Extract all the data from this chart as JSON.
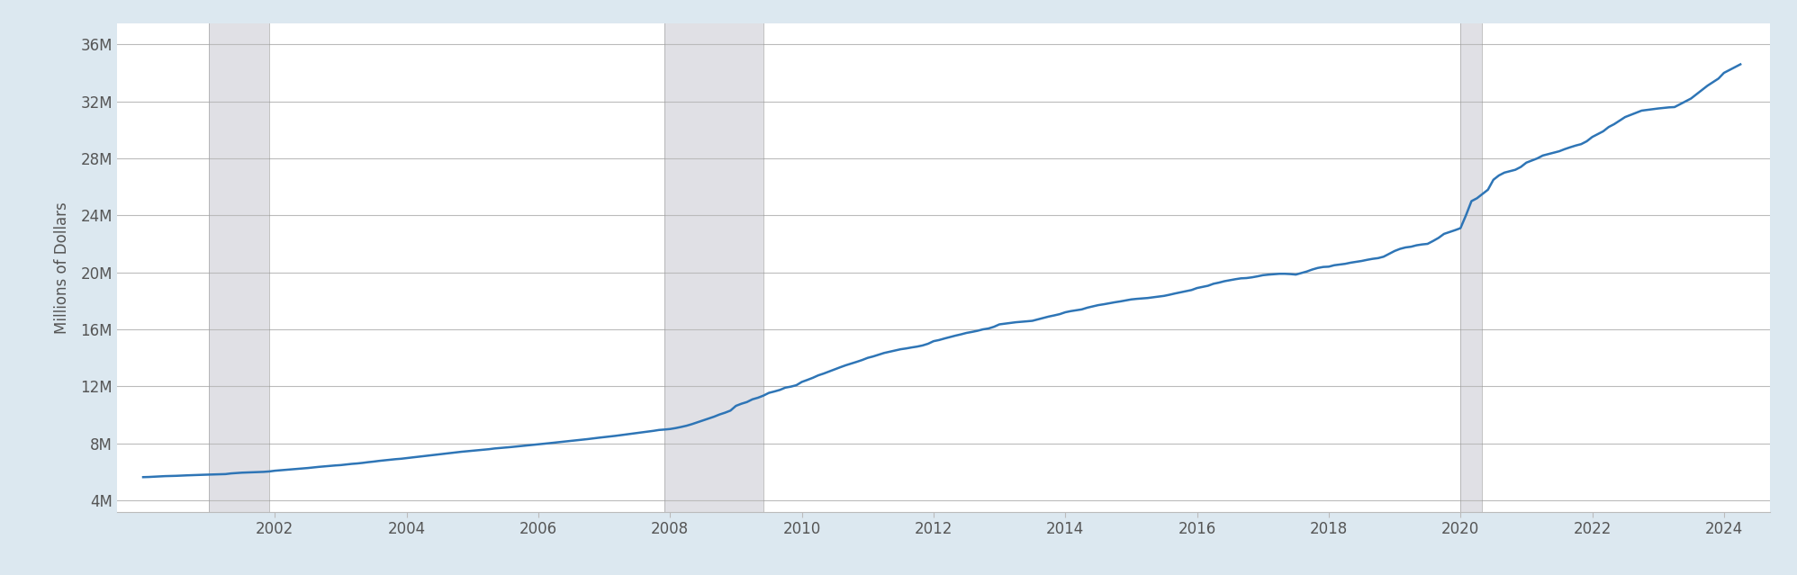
{
  "ylabel": "Millions of Dollars",
  "background_color": "#dce8f0",
  "plot_background_color": "#ffffff",
  "line_color": "#2e75b6",
  "line_width": 1.8,
  "grid_color": "#bbbbbb",
  "yticks": [
    4000000,
    8000000,
    12000000,
    16000000,
    20000000,
    24000000,
    28000000,
    32000000,
    36000000
  ],
  "ytick_labels": [
    "4M",
    "8M",
    "12M",
    "16M",
    "20M",
    "24M",
    "28M",
    "32M",
    "36M"
  ],
  "xticks": [
    2002,
    2004,
    2006,
    2008,
    2010,
    2012,
    2014,
    2016,
    2018,
    2020,
    2022,
    2024
  ],
  "ylim": [
    3200000,
    37500000
  ],
  "xlim": [
    1999.6,
    2024.7
  ],
  "recession_bands": [
    {
      "start": 2001.0,
      "end": 2001.92
    },
    {
      "start": 2007.92,
      "end": 2009.42
    },
    {
      "start": 2020.0,
      "end": 2020.33
    }
  ],
  "recession_color": "#d0d0d8",
  "recession_line_color": "#999999",
  "recession_alpha": 0.65,
  "data_x": [
    2000.0,
    2000.083,
    2000.167,
    2000.25,
    2000.333,
    2000.417,
    2000.5,
    2000.583,
    2000.667,
    2000.75,
    2000.833,
    2000.917,
    2001.0,
    2001.083,
    2001.167,
    2001.25,
    2001.333,
    2001.417,
    2001.5,
    2001.583,
    2001.667,
    2001.75,
    2001.833,
    2001.917,
    2002.0,
    2002.083,
    2002.167,
    2002.25,
    2002.333,
    2002.417,
    2002.5,
    2002.583,
    2002.667,
    2002.75,
    2002.833,
    2002.917,
    2003.0,
    2003.083,
    2003.167,
    2003.25,
    2003.333,
    2003.417,
    2003.5,
    2003.583,
    2003.667,
    2003.75,
    2003.833,
    2003.917,
    2004.0,
    2004.083,
    2004.167,
    2004.25,
    2004.333,
    2004.417,
    2004.5,
    2004.583,
    2004.667,
    2004.75,
    2004.833,
    2004.917,
    2005.0,
    2005.083,
    2005.167,
    2005.25,
    2005.333,
    2005.417,
    2005.5,
    2005.583,
    2005.667,
    2005.75,
    2005.833,
    2005.917,
    2006.0,
    2006.083,
    2006.167,
    2006.25,
    2006.333,
    2006.417,
    2006.5,
    2006.583,
    2006.667,
    2006.75,
    2006.833,
    2006.917,
    2007.0,
    2007.083,
    2007.167,
    2007.25,
    2007.333,
    2007.417,
    2007.5,
    2007.583,
    2007.667,
    2007.75,
    2007.833,
    2007.917,
    2008.0,
    2008.083,
    2008.167,
    2008.25,
    2008.333,
    2008.417,
    2008.5,
    2008.583,
    2008.667,
    2008.75,
    2008.833,
    2008.917,
    2009.0,
    2009.083,
    2009.167,
    2009.25,
    2009.333,
    2009.417,
    2009.5,
    2009.583,
    2009.667,
    2009.75,
    2009.833,
    2009.917,
    2010.0,
    2010.083,
    2010.167,
    2010.25,
    2010.333,
    2010.417,
    2010.5,
    2010.583,
    2010.667,
    2010.75,
    2010.833,
    2010.917,
    2011.0,
    2011.083,
    2011.167,
    2011.25,
    2011.333,
    2011.417,
    2011.5,
    2011.583,
    2011.667,
    2011.75,
    2011.833,
    2011.917,
    2012.0,
    2012.083,
    2012.167,
    2012.25,
    2012.333,
    2012.417,
    2012.5,
    2012.583,
    2012.667,
    2012.75,
    2012.833,
    2012.917,
    2013.0,
    2013.083,
    2013.167,
    2013.25,
    2013.333,
    2013.417,
    2013.5,
    2013.583,
    2013.667,
    2013.75,
    2013.833,
    2013.917,
    2014.0,
    2014.083,
    2014.167,
    2014.25,
    2014.333,
    2014.417,
    2014.5,
    2014.583,
    2014.667,
    2014.75,
    2014.833,
    2014.917,
    2015.0,
    2015.083,
    2015.167,
    2015.25,
    2015.333,
    2015.417,
    2015.5,
    2015.583,
    2015.667,
    2015.75,
    2015.833,
    2015.917,
    2016.0,
    2016.083,
    2016.167,
    2016.25,
    2016.333,
    2016.417,
    2016.5,
    2016.583,
    2016.667,
    2016.75,
    2016.833,
    2016.917,
    2017.0,
    2017.083,
    2017.167,
    2017.25,
    2017.333,
    2017.417,
    2017.5,
    2017.583,
    2017.667,
    2017.75,
    2017.833,
    2017.917,
    2018.0,
    2018.083,
    2018.167,
    2018.25,
    2018.333,
    2018.417,
    2018.5,
    2018.583,
    2018.667,
    2018.75,
    2018.833,
    2018.917,
    2019.0,
    2019.083,
    2019.167,
    2019.25,
    2019.333,
    2019.417,
    2019.5,
    2019.583,
    2019.667,
    2019.75,
    2019.833,
    2019.917,
    2020.0,
    2020.083,
    2020.167,
    2020.25,
    2020.333,
    2020.417,
    2020.5,
    2020.583,
    2020.667,
    2020.75,
    2020.833,
    2020.917,
    2021.0,
    2021.083,
    2021.167,
    2021.25,
    2021.333,
    2021.417,
    2021.5,
    2021.583,
    2021.667,
    2021.75,
    2021.833,
    2021.917,
    2022.0,
    2022.083,
    2022.167,
    2022.25,
    2022.333,
    2022.417,
    2022.5,
    2022.583,
    2022.667,
    2022.75,
    2022.833,
    2022.917,
    2023.0,
    2023.083,
    2023.167,
    2023.25,
    2023.333,
    2023.417,
    2023.5,
    2023.583,
    2023.667,
    2023.75,
    2023.833,
    2023.917,
    2024.0,
    2024.083,
    2024.167,
    2024.25
  ],
  "data_y": [
    5629000,
    5640000,
    5660000,
    5685000,
    5700000,
    5710000,
    5721000,
    5740000,
    5755000,
    5770000,
    5785000,
    5796000,
    5807000,
    5820000,
    5832000,
    5843000,
    5890000,
    5920000,
    5943000,
    5958000,
    5972000,
    5988000,
    6000000,
    6030000,
    6079000,
    6110000,
    6145000,
    6176000,
    6210000,
    6240000,
    6269000,
    6310000,
    6350000,
    6384000,
    6420000,
    6450000,
    6475000,
    6520000,
    6560000,
    6589000,
    6630000,
    6680000,
    6721000,
    6770000,
    6810000,
    6853000,
    6890000,
    6920000,
    6968000,
    7010000,
    7055000,
    7099000,
    7145000,
    7190000,
    7230000,
    7280000,
    7325000,
    7367000,
    7410000,
    7445000,
    7480000,
    7520000,
    7555000,
    7590000,
    7640000,
    7672000,
    7700000,
    7740000,
    7780000,
    7820000,
    7860000,
    7895000,
    7933000,
    7975000,
    8012000,
    8050000,
    8095000,
    8135000,
    8175000,
    8215000,
    8258000,
    8300000,
    8350000,
    8395000,
    8438000,
    8480000,
    8525000,
    8575000,
    8620000,
    8670000,
    8720000,
    8780000,
    8830000,
    8880000,
    8940000,
    8970000,
    9007000,
    9070000,
    9150000,
    9237000,
    9350000,
    9480000,
    9602000,
    9730000,
    9870000,
    10024000,
    10150000,
    10300000,
    10632000,
    10780000,
    10900000,
    11090000,
    11200000,
    11350000,
    11542000,
    11640000,
    11750000,
    11910000,
    11980000,
    12080000,
    12311000,
    12450000,
    12600000,
    12773000,
    12900000,
    13050000,
    13200000,
    13340000,
    13480000,
    13600000,
    13720000,
    13850000,
    14000000,
    14100000,
    14220000,
    14344000,
    14430000,
    14520000,
    14604000,
    14660000,
    14730000,
    14790000,
    14870000,
    14990000,
    15170000,
    15250000,
    15360000,
    15460000,
    15560000,
    15650000,
    15750000,
    15820000,
    15900000,
    16000000,
    16060000,
    16180000,
    16350000,
    16400000,
    16450000,
    16500000,
    16530000,
    16565000,
    16600000,
    16700000,
    16800000,
    16900000,
    16980000,
    17070000,
    17200000,
    17280000,
    17340000,
    17400000,
    17520000,
    17610000,
    17700000,
    17760000,
    17830000,
    17900000,
    17960000,
    18030000,
    18100000,
    18140000,
    18170000,
    18200000,
    18250000,
    18300000,
    18350000,
    18430000,
    18520000,
    18600000,
    18680000,
    18760000,
    18900000,
    18980000,
    19060000,
    19200000,
    19280000,
    19380000,
    19450000,
    19520000,
    19580000,
    19600000,
    19650000,
    19720000,
    19800000,
    19840000,
    19870000,
    19900000,
    19900000,
    19880000,
    19845000,
    19950000,
    20060000,
    20200000,
    20310000,
    20380000,
    20400000,
    20500000,
    20550000,
    20600000,
    20680000,
    20740000,
    20800000,
    20880000,
    20950000,
    21000000,
    21100000,
    21300000,
    21500000,
    21650000,
    21750000,
    21800000,
    21900000,
    21960000,
    22000000,
    22200000,
    22420000,
    22700000,
    22830000,
    22960000,
    23100000,
    24000000,
    25000000,
    25200000,
    25500000,
    25800000,
    26500000,
    26800000,
    27000000,
    27100000,
    27200000,
    27400000,
    27700000,
    27850000,
    28000000,
    28200000,
    28300000,
    28400000,
    28500000,
    28650000,
    28780000,
    28900000,
    29000000,
    29200000,
    29500000,
    29700000,
    29900000,
    30200000,
    30400000,
    30650000,
    30900000,
    31050000,
    31200000,
    31350000,
    31400000,
    31450000,
    31500000,
    31540000,
    31580000,
    31600000,
    31800000,
    32000000,
    32200000,
    32500000,
    32800000,
    33100000,
    33350000,
    33600000,
    34000000,
    34200000,
    34400000,
    34600000
  ]
}
